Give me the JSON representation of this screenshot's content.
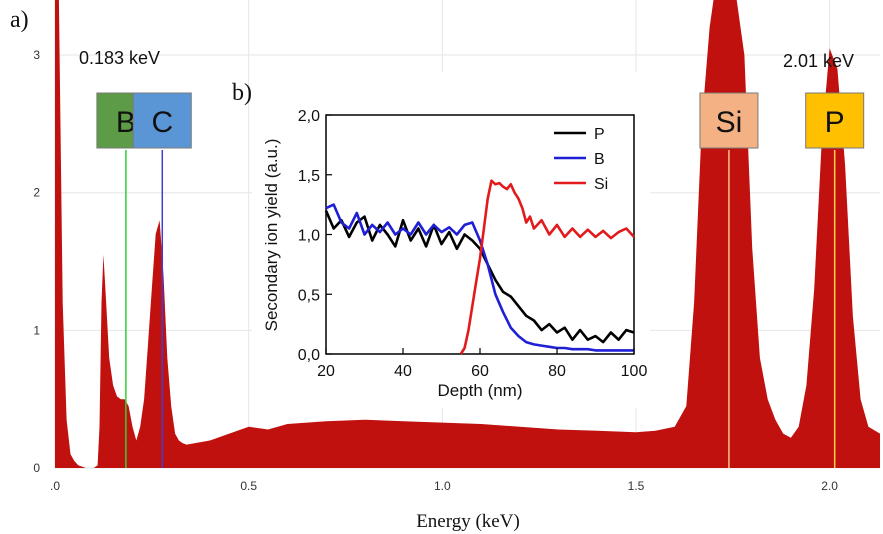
{
  "chart_data": [
    {
      "panel_label": "a)",
      "type": "area",
      "xlabel": "Energy (keV)",
      "ylabel": "",
      "xlim": [
        0,
        2.13
      ],
      "ylim": [
        0,
        3.4
      ],
      "x_ticks": [
        0.0,
        0.5,
        1.0,
        1.5,
        2.0
      ],
      "x_tick_labels": [
        ".0",
        "0.5",
        "1.0",
        "1.5",
        "2.0"
      ],
      "y_ticks": [
        0,
        1,
        2,
        3
      ],
      "y_tick_labels": [
        "0",
        "1",
        "2",
        "3"
      ],
      "grid": true,
      "fill_color": "#c0110f",
      "series": [
        {
          "x": [
            0.0,
            0.01,
            0.02,
            0.03,
            0.04,
            0.05,
            0.06,
            0.08,
            0.1,
            0.11,
            0.115,
            0.12,
            0.125,
            0.13,
            0.14,
            0.15,
            0.16,
            0.17,
            0.18,
            0.19,
            0.2,
            0.21,
            0.22,
            0.23,
            0.24,
            0.25,
            0.26,
            0.27,
            0.28,
            0.29,
            0.3,
            0.31,
            0.32,
            0.33,
            0.34,
            0.36,
            0.4,
            0.45,
            0.5,
            0.55,
            0.6,
            0.7,
            0.8,
            0.9,
            1.0,
            1.1,
            1.2,
            1.3,
            1.4,
            1.5,
            1.55,
            1.6,
            1.63,
            1.65,
            1.67,
            1.69,
            1.7,
            1.72,
            1.74,
            1.76,
            1.78,
            1.8,
            1.82,
            1.84,
            1.86,
            1.88,
            1.9,
            1.92,
            1.94,
            1.96,
            1.98,
            2.0,
            2.02,
            2.04,
            2.06,
            2.08,
            2.1,
            2.13
          ],
          "y": [
            3.4,
            3.4,
            1.2,
            0.35,
            0.1,
            0.05,
            0.02,
            0.0,
            0.0,
            0.02,
            0.3,
            1.2,
            1.55,
            1.3,
            0.8,
            0.6,
            0.52,
            0.5,
            0.5,
            0.45,
            0.3,
            0.2,
            0.3,
            0.5,
            0.9,
            1.3,
            1.7,
            1.8,
            1.4,
            0.8,
            0.45,
            0.25,
            0.2,
            0.18,
            0.17,
            0.18,
            0.2,
            0.25,
            0.3,
            0.28,
            0.32,
            0.34,
            0.35,
            0.34,
            0.33,
            0.32,
            0.3,
            0.28,
            0.27,
            0.26,
            0.27,
            0.3,
            0.45,
            1.2,
            2.5,
            3.2,
            3.4,
            3.4,
            3.4,
            3.4,
            3.0,
            1.6,
            0.8,
            0.5,
            0.35,
            0.25,
            0.22,
            0.3,
            0.6,
            1.3,
            2.4,
            3.05,
            2.9,
            2.2,
            1.1,
            0.5,
            0.3,
            0.25
          ]
        }
      ],
      "annotations": [
        {
          "text": "0.183 keV"
        },
        {
          "text": "2.01 keV"
        }
      ],
      "element_labels": [
        {
          "text": "B",
          "x": 0.183,
          "box_color": "#5e9b47",
          "line_color": "#33d033"
        },
        {
          "text": "C",
          "x": 0.277,
          "box_color": "#5a95d5",
          "line_color": "#3f3fcf"
        },
        {
          "text": "Si",
          "x": 1.74,
          "box_color": "#f4b183",
          "line_color": "#f4c48a"
        },
        {
          "text": "P",
          "x": 2.013,
          "box_color": "#ffc000",
          "line_color": "#ffd24a"
        }
      ]
    },
    {
      "panel_label": "b)",
      "type": "line",
      "xlabel": "Depth (nm)",
      "ylabel": "Secondary ion yield (a.u.)",
      "xlim": [
        20,
        100
      ],
      "ylim": [
        0.0,
        2.0
      ],
      "x_ticks": [
        20,
        40,
        60,
        80,
        100
      ],
      "x_tick_labels": [
        "20",
        "40",
        "60",
        "80",
        "100"
      ],
      "y_ticks": [
        0.0,
        0.5,
        1.0,
        1.5,
        2.0
      ],
      "y_tick_labels": [
        "0,0",
        "0,5",
        "1,0",
        "1,5",
        "2,0"
      ],
      "legend_position": "top-right",
      "series": [
        {
          "name": "P",
          "color": "#000000",
          "x": [
            20,
            22,
            24,
            26,
            28,
            30,
            32,
            34,
            36,
            38,
            40,
            42,
            44,
            46,
            48,
            50,
            52,
            54,
            56,
            58,
            60,
            62,
            64,
            66,
            68,
            70,
            72,
            74,
            76,
            78,
            80,
            82,
            84,
            86,
            88,
            90,
            92,
            94,
            96,
            98,
            100
          ],
          "y": [
            1.2,
            1.05,
            1.12,
            0.98,
            1.1,
            1.15,
            0.95,
            1.08,
            1.0,
            0.9,
            1.12,
            0.95,
            1.05,
            0.9,
            1.08,
            0.92,
            1.02,
            0.88,
            1.0,
            0.95,
            0.88,
            0.75,
            0.62,
            0.52,
            0.48,
            0.4,
            0.32,
            0.28,
            0.2,
            0.25,
            0.18,
            0.22,
            0.12,
            0.2,
            0.12,
            0.15,
            0.1,
            0.18,
            0.12,
            0.2,
            0.18
          ]
        },
        {
          "name": "B",
          "color": "#1f1fd6",
          "x": [
            20,
            22,
            24,
            26,
            28,
            30,
            32,
            34,
            36,
            38,
            40,
            42,
            44,
            46,
            48,
            50,
            52,
            54,
            56,
            58,
            60,
            62,
            64,
            66,
            68,
            70,
            72,
            74,
            76,
            78,
            80,
            82,
            84,
            86,
            88,
            90,
            92,
            94,
            96,
            98,
            100
          ],
          "y": [
            1.22,
            1.25,
            1.1,
            1.05,
            1.18,
            1.0,
            1.08,
            1.02,
            1.1,
            1.0,
            1.05,
            1.0,
            1.1,
            1.0,
            1.08,
            1.02,
            1.06,
            1.0,
            1.08,
            1.1,
            0.95,
            0.75,
            0.5,
            0.35,
            0.22,
            0.15,
            0.1,
            0.08,
            0.07,
            0.06,
            0.05,
            0.05,
            0.04,
            0.04,
            0.04,
            0.03,
            0.03,
            0.03,
            0.03,
            0.03,
            0.03
          ]
        },
        {
          "name": "Si",
          "color": "#e31a1c",
          "x": [
            55,
            56,
            57,
            58,
            59,
            60,
            61,
            62,
            63,
            64,
            65,
            66,
            67,
            68,
            69,
            70,
            71,
            72,
            73,
            74,
            76,
            78,
            80,
            82,
            84,
            86,
            88,
            90,
            92,
            94,
            96,
            98,
            100
          ],
          "y": [
            0.0,
            0.05,
            0.2,
            0.4,
            0.6,
            0.8,
            1.05,
            1.3,
            1.45,
            1.42,
            1.43,
            1.4,
            1.38,
            1.42,
            1.35,
            1.3,
            1.22,
            1.1,
            1.15,
            1.05,
            1.12,
            1.0,
            1.08,
            0.98,
            1.05,
            0.98,
            1.04,
            0.98,
            1.03,
            0.97,
            1.02,
            1.05,
            0.98
          ]
        }
      ]
    }
  ]
}
